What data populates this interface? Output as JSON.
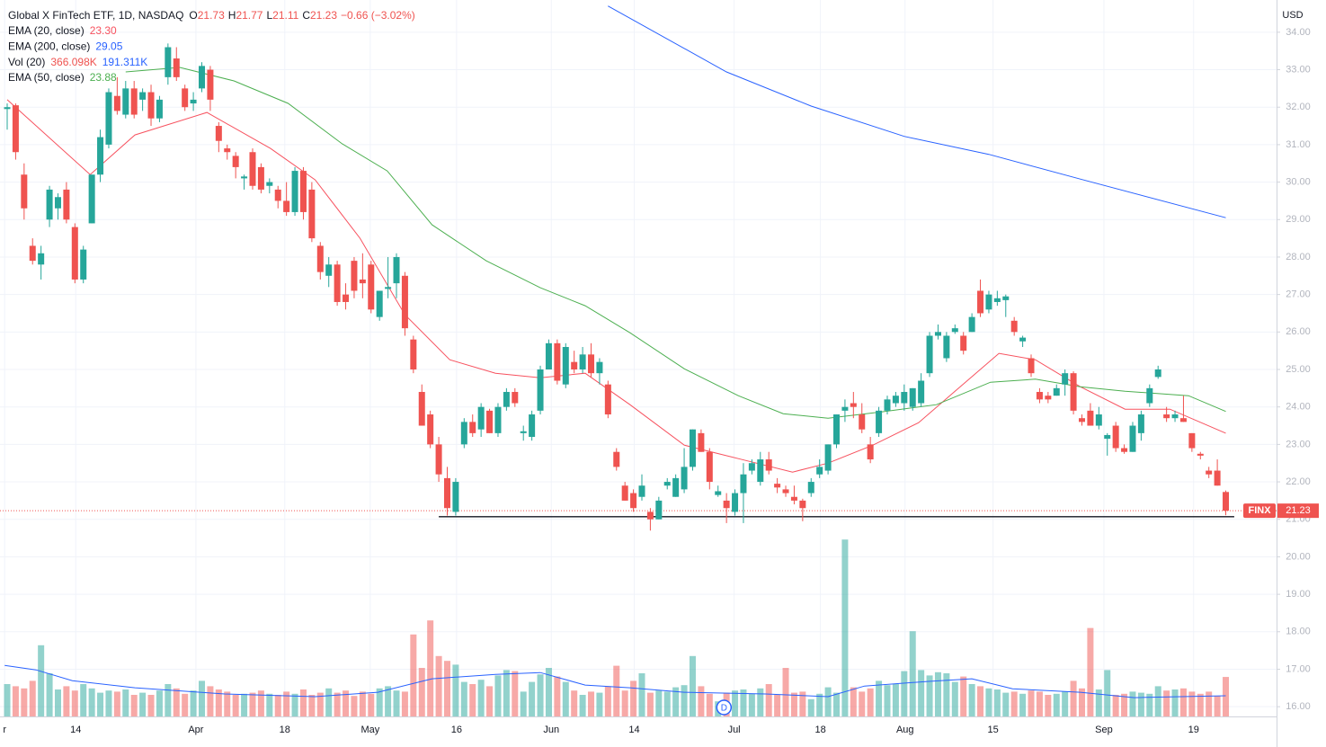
{
  "chart_data": {
    "type": "candlestick",
    "header": {
      "title": "Global X FinTech ETF, 1D, NASDAQ",
      "ohlc": [
        {
          "label": "O",
          "value": "21.73"
        },
        {
          "label": "H",
          "value": "21.77"
        },
        {
          "label": "L",
          "value": "21.11"
        },
        {
          "label": "C",
          "value": "21.23"
        }
      ],
      "change": "−0.66 (−3.02%)"
    },
    "currency": "USD",
    "symbol": "FINX",
    "dividend_marker": {
      "label": "D",
      "x": 84.7
    },
    "up_color": "#26a69a",
    "down_color": "#ef5350",
    "ylim": [
      15.74,
      34.86
    ],
    "yticks": [
      {
        "value": 16,
        "label": "16.00"
      },
      {
        "value": 17,
        "label": "17.00"
      },
      {
        "value": 18,
        "label": "18.00"
      },
      {
        "value": 19,
        "label": "19.00"
      },
      {
        "value": 20,
        "label": "20.00"
      },
      {
        "value": 21,
        "label": "21.00"
      },
      {
        "value": 22,
        "label": "22.00"
      },
      {
        "value": 23,
        "label": "23.00"
      },
      {
        "value": 24,
        "label": "24.00"
      },
      {
        "value": 25,
        "label": "25.00"
      },
      {
        "value": 26,
        "label": "26.00"
      },
      {
        "value": 27,
        "label": "27.00"
      },
      {
        "value": 28,
        "label": "28.00"
      },
      {
        "value": 29,
        "label": "29.00"
      },
      {
        "value": 30,
        "label": "30.00"
      },
      {
        "value": 31,
        "label": "31.00"
      },
      {
        "value": 32,
        "label": "32.00"
      },
      {
        "value": 33,
        "label": "33.00"
      },
      {
        "value": 34,
        "label": "34.00"
      }
    ],
    "xlim": [
      -0.85,
      150
    ],
    "xticks": [
      {
        "value": -0.3,
        "label": "r"
      },
      {
        "value": 8.1,
        "label": "14"
      },
      {
        "value": 22.3,
        "label": "Apr"
      },
      {
        "value": 32.8,
        "label": "18"
      },
      {
        "value": 42.9,
        "label": "May"
      },
      {
        "value": 53.1,
        "label": "16"
      },
      {
        "value": 64.3,
        "label": "Jun"
      },
      {
        "value": 74.1,
        "label": "14"
      },
      {
        "value": 85.9,
        "label": "Jul"
      },
      {
        "value": 96.1,
        "label": "18"
      },
      {
        "value": 106.1,
        "label": "Aug"
      },
      {
        "value": 116.5,
        "label": "15"
      },
      {
        "value": 129.6,
        "label": "Sep"
      },
      {
        "value": 140.2,
        "label": "19"
      }
    ],
    "grid": true,
    "support_line": {
      "value": 21.07,
      "from": 51,
      "to": 145
    },
    "candles": [
      [
        31.95,
        32.1,
        31.4,
        32.0
      ],
      [
        32.05,
        32.1,
        30.6,
        30.8
      ],
      [
        30.2,
        30.5,
        29.0,
        29.3
      ],
      [
        28.3,
        28.5,
        27.8,
        27.9
      ],
      [
        27.8,
        28.3,
        27.4,
        28.1
      ],
      [
        29.0,
        29.9,
        28.8,
        29.8
      ],
      [
        29.3,
        29.7,
        29.0,
        29.6
      ],
      [
        29.8,
        30.0,
        28.9,
        29.0
      ],
      [
        28.8,
        28.9,
        27.3,
        27.4
      ],
      [
        27.4,
        28.3,
        27.3,
        28.2
      ],
      [
        28.9,
        30.2,
        28.9,
        30.2
      ],
      [
        30.2,
        31.4,
        30.0,
        31.2
      ],
      [
        31.0,
        32.5,
        30.9,
        32.4
      ],
      [
        32.3,
        32.8,
        31.8,
        31.9
      ],
      [
        31.8,
        32.7,
        31.7,
        32.5
      ],
      [
        32.5,
        32.7,
        31.7,
        31.8
      ],
      [
        32.2,
        32.5,
        31.9,
        32.4
      ],
      [
        32.4,
        32.6,
        31.5,
        31.7
      ],
      [
        31.7,
        32.3,
        31.6,
        32.2
      ],
      [
        32.8,
        33.7,
        32.6,
        33.6
      ],
      [
        33.3,
        33.6,
        32.7,
        32.8
      ],
      [
        32.5,
        32.6,
        31.9,
        32.0
      ],
      [
        32.1,
        32.4,
        31.9,
        32.2
      ],
      [
        32.5,
        33.2,
        32.4,
        33.1
      ],
      [
        33.0,
        33.1,
        31.9,
        32.2
      ],
      [
        31.5,
        31.6,
        30.8,
        31.1
      ],
      [
        30.9,
        31.0,
        30.6,
        30.8
      ],
      [
        30.7,
        30.8,
        30.1,
        30.4
      ],
      [
        30.1,
        30.2,
        29.8,
        30.15
      ],
      [
        30.8,
        30.9,
        29.8,
        29.9
      ],
      [
        30.4,
        30.5,
        29.7,
        29.8
      ],
      [
        29.9,
        30.1,
        29.7,
        30.0
      ],
      [
        29.8,
        29.9,
        29.3,
        29.5
      ],
      [
        29.5,
        30.0,
        29.1,
        29.2
      ],
      [
        29.2,
        30.4,
        29.1,
        30.3
      ],
      [
        30.3,
        30.4,
        29.0,
        29.2
      ],
      [
        29.8,
        30.0,
        28.4,
        28.5
      ],
      [
        28.3,
        28.4,
        27.4,
        27.6
      ],
      [
        27.5,
        28.0,
        27.2,
        27.8
      ],
      [
        27.8,
        27.9,
        26.7,
        26.8
      ],
      [
        27.0,
        27.3,
        26.6,
        26.8
      ],
      [
        27.9,
        28.0,
        26.9,
        27.1
      ],
      [
        27.4,
        28.1,
        26.9,
        27.3
      ],
      [
        27.8,
        27.9,
        26.5,
        26.6
      ],
      [
        26.4,
        27.1,
        26.3,
        27.1
      ],
      [
        27.15,
        28.0,
        26.9,
        27.2
      ],
      [
        27.3,
        28.1,
        26.9,
        28.0
      ],
      [
        27.5,
        27.6,
        25.9,
        26.1
      ],
      [
        25.8,
        25.9,
        24.9,
        25.0
      ],
      [
        24.4,
        24.6,
        23.5,
        23.5
      ],
      [
        23.8,
        23.9,
        22.9,
        23.0
      ],
      [
        23.0,
        23.2,
        22.0,
        22.2
      ],
      [
        22.1,
        22.4,
        21.1,
        21.3
      ],
      [
        21.2,
        22.1,
        21.1,
        22.0
      ],
      [
        23.0,
        23.7,
        22.9,
        23.6
      ],
      [
        23.6,
        23.8,
        23.2,
        23.3
      ],
      [
        23.4,
        24.1,
        23.2,
        24.0
      ],
      [
        23.9,
        23.95,
        23.3,
        23.3
      ],
      [
        23.3,
        24.1,
        23.2,
        24.0
      ],
      [
        24.0,
        24.5,
        23.9,
        24.4
      ],
      [
        24.4,
        24.5,
        24.0,
        24.1
      ],
      [
        23.3,
        23.5,
        23.1,
        23.35
      ],
      [
        23.2,
        23.9,
        23.1,
        23.8
      ],
      [
        23.9,
        25.1,
        23.8,
        25.0
      ],
      [
        25.0,
        25.8,
        25.0,
        25.7
      ],
      [
        25.7,
        25.8,
        24.6,
        24.7
      ],
      [
        24.6,
        25.7,
        24.5,
        25.6
      ],
      [
        25.2,
        25.5,
        24.9,
        25.0
      ],
      [
        25.0,
        25.6,
        24.9,
        25.4
      ],
      [
        25.4,
        25.7,
        24.8,
        24.9
      ],
      [
        24.9,
        25.3,
        24.6,
        25.2
      ],
      [
        24.6,
        24.7,
        23.7,
        23.8
      ],
      [
        22.8,
        22.9,
        22.3,
        22.4
      ],
      [
        21.9,
        22.0,
        21.5,
        21.5
      ],
      [
        21.7,
        21.8,
        21.2,
        21.3
      ],
      [
        21.6,
        22.2,
        21.5,
        21.9
      ],
      [
        21.2,
        21.3,
        20.7,
        21.0
      ],
      [
        21.0,
        21.6,
        21.0,
        21.5
      ],
      [
        21.9,
        22.1,
        21.8,
        22.0
      ],
      [
        21.6,
        22.2,
        21.6,
        22.1
      ],
      [
        21.8,
        22.9,
        21.7,
        22.4
      ],
      [
        22.4,
        23.4,
        22.3,
        23.4
      ],
      [
        23.3,
        23.4,
        22.8,
        22.8
      ],
      [
        22.8,
        22.9,
        21.8,
        22.0
      ],
      [
        21.65,
        21.9,
        21.6,
        21.75
      ],
      [
        21.5,
        21.7,
        20.9,
        21.3
      ],
      [
        21.2,
        21.8,
        21.1,
        21.7
      ],
      [
        21.7,
        22.5,
        20.9,
        22.2
      ],
      [
        22.3,
        22.6,
        22.2,
        22.5
      ],
      [
        22.0,
        22.8,
        21.9,
        22.6
      ],
      [
        22.6,
        22.8,
        22.2,
        22.3
      ],
      [
        21.95,
        22.1,
        21.7,
        21.85
      ],
      [
        21.8,
        21.9,
        21.6,
        21.7
      ],
      [
        21.6,
        21.9,
        21.4,
        21.5
      ],
      [
        21.5,
        21.55,
        20.95,
        21.3
      ],
      [
        21.7,
        22.1,
        21.6,
        22.0
      ],
      [
        22.2,
        22.6,
        22.1,
        22.4
      ],
      [
        22.3,
        23.0,
        22.2,
        23.0
      ],
      [
        23.0,
        23.8,
        22.9,
        23.8
      ],
      [
        23.9,
        24.2,
        23.6,
        24.0
      ],
      [
        24.1,
        24.4,
        23.7,
        24.0
      ],
      [
        23.8,
        24.1,
        23.3,
        23.4
      ],
      [
        23.0,
        23.2,
        22.5,
        22.6
      ],
      [
        23.3,
        24.0,
        23.2,
        23.9
      ],
      [
        23.9,
        24.3,
        23.8,
        24.2
      ],
      [
        24.1,
        24.4,
        24.0,
        24.3
      ],
      [
        24.1,
        24.6,
        23.9,
        24.4
      ],
      [
        24.0,
        24.5,
        23.9,
        24.5
      ],
      [
        24.1,
        24.9,
        24.0,
        24.7
      ],
      [
        24.9,
        26.0,
        24.8,
        25.9
      ],
      [
        25.9,
        26.2,
        25.8,
        26.0
      ],
      [
        25.3,
        26.0,
        25.2,
        25.9
      ],
      [
        26.0,
        26.2,
        25.95,
        26.1
      ],
      [
        25.9,
        26.0,
        25.4,
        25.5
      ],
      [
        26.0,
        26.5,
        26.0,
        26.4
      ],
      [
        27.1,
        27.4,
        26.4,
        26.5
      ],
      [
        26.6,
        27.1,
        26.5,
        27.0
      ],
      [
        26.8,
        27.1,
        26.7,
        26.9
      ],
      [
        26.85,
        27.0,
        26.4,
        26.95
      ],
      [
        26.3,
        26.4,
        25.9,
        26.0
      ],
      [
        25.75,
        25.9,
        25.6,
        25.85
      ],
      [
        25.3,
        25.4,
        24.8,
        24.9
      ],
      [
        24.4,
        24.5,
        24.1,
        24.2
      ],
      [
        24.3,
        24.4,
        24.1,
        24.2
      ],
      [
        24.3,
        24.6,
        24.3,
        24.5
      ],
      [
        24.6,
        25.0,
        24.3,
        24.9
      ],
      [
        24.9,
        24.95,
        23.8,
        23.9
      ],
      [
        23.7,
        23.8,
        23.5,
        23.6
      ],
      [
        23.9,
        24.1,
        23.5,
        23.5
      ],
      [
        23.5,
        24.0,
        23.4,
        23.8
      ],
      [
        23.15,
        23.3,
        22.7,
        23.25
      ],
      [
        23.5,
        23.6,
        22.8,
        22.9
      ],
      [
        22.9,
        23.0,
        22.75,
        22.8
      ],
      [
        22.8,
        23.6,
        22.8,
        23.5
      ],
      [
        23.3,
        23.9,
        23.1,
        23.8
      ],
      [
        24.1,
        24.6,
        24.0,
        24.5
      ],
      [
        24.8,
        25.1,
        24.75,
        25.0
      ],
      [
        23.8,
        24.0,
        23.6,
        23.7
      ],
      [
        23.7,
        23.9,
        23.6,
        23.8
      ],
      [
        23.7,
        24.3,
        23.6,
        23.6
      ],
      [
        23.3,
        23.3,
        22.8,
        22.9
      ],
      [
        22.75,
        22.8,
        22.6,
        22.7
      ],
      [
        22.3,
        22.4,
        22.1,
        22.2
      ],
      [
        22.3,
        22.6,
        21.9,
        21.9
      ],
      [
        21.73,
        21.77,
        21.11,
        21.23
      ]
    ],
    "volume": {
      "ylim": [
        0,
        1725
      ],
      "values": [
        300,
        280,
        260,
        330,
        660,
        400,
        250,
        280,
        240,
        300,
        260,
        220,
        240,
        230,
        250,
        200,
        220,
        200,
        240,
        300,
        260,
        210,
        240,
        330,
        280,
        250,
        230,
        200,
        210,
        220,
        240,
        210,
        200,
        230,
        210,
        250,
        200,
        220,
        260,
        220,
        240,
        190,
        230,
        210,
        260,
        280,
        240,
        230,
        760,
        450,
        890,
        560,
        515,
        480,
        320,
        300,
        340,
        280,
        380,
        430,
        420,
        230,
        320,
        390,
        450,
        370,
        320,
        240,
        200,
        230,
        220,
        280,
        470,
        240,
        330,
        400,
        220,
        240,
        230,
        270,
        290,
        560,
        280,
        210,
        140,
        220,
        240,
        250,
        210,
        260,
        300,
        200,
        450,
        220,
        230,
        160,
        210,
        270,
        220,
        1640,
        270,
        230,
        260,
        330,
        290,
        300,
        420,
        790,
        430,
        380,
        410,
        400,
        320,
        370,
        300,
        280,
        260,
        250,
        220,
        230,
        210,
        240,
        230,
        200,
        210,
        230,
        330,
        260,
        820,
        250,
        430,
        200,
        210,
        230,
        220,
        210,
        280,
        240,
        250,
        260,
        230,
        210,
        230,
        190,
        366.098
      ]
    },
    "line_series": [
      {
        "name": "EMA (20, close)",
        "legend_value": "23.30",
        "color": "#f7525f",
        "pane": "price",
        "x": [
          0,
          9.8,
          15.1,
          23.6,
          31.1,
          36.4,
          41.7,
          47,
          52.3,
          57.7,
          63,
          68.3,
          73.6,
          80,
          86.4,
          92.8,
          97,
          102.3,
          107.7,
          112,
          117.2,
          121.5,
          126.8,
          132.1,
          137.4,
          144
        ],
        "values": [
          32.2,
          30.2,
          31.26,
          31.86,
          30.9,
          30.06,
          28.5,
          26.46,
          25.26,
          24.9,
          24.78,
          24.9,
          24.06,
          22.98,
          22.62,
          22.26,
          22.5,
          22.98,
          23.58,
          24.42,
          25.43,
          25.26,
          24.54,
          23.94,
          23.94,
          23.3
        ]
      },
      {
        "name": "EMA (200, close)",
        "legend_value": "29.05",
        "color": "#2962ff",
        "pane": "price",
        "x": [
          71,
          85,
          95,
          106,
          116,
          127,
          144
        ],
        "values": [
          34.7,
          32.94,
          32.03,
          31.22,
          30.74,
          30.07,
          29.05
        ]
      },
      {
        "name": "EMA (50, close)",
        "legend_value": "23.88",
        "color": "#4caf50",
        "pane": "price",
        "x": [
          14,
          20.4,
          26.8,
          33.2,
          39.6,
          44.9,
          50.2,
          56.6,
          63,
          68.3,
          73.6,
          80,
          86.4,
          91.7,
          97,
          103.4,
          109.8,
          116.2,
          121.5,
          126.8,
          132.1,
          139.6,
          144
        ],
        "values": [
          32.94,
          33.06,
          32.7,
          32.1,
          31.02,
          30.3,
          28.86,
          27.9,
          27.18,
          26.7,
          25.98,
          25.02,
          24.3,
          23.82,
          23.7,
          23.87,
          24.06,
          24.66,
          24.74,
          24.54,
          24.42,
          24.3,
          23.88
        ]
      },
      {
        "name": "Vol (20)",
        "legend_value": "366.098K",
        "legend_value2": "191.311K",
        "color": "#2962ff",
        "pane": "volume",
        "x": [
          -0.3,
          3.4,
          7.7,
          15.1,
          25.7,
          36.4,
          43.8,
          50.2,
          57.7,
          63,
          68.3,
          73.6,
          80,
          89.6,
          97,
          101.3,
          108.7,
          114,
          118.8,
          126.8,
          133.2,
          144
        ],
        "values": [
          473,
          432,
          332,
          266,
          208,
          183,
          224,
          349,
          390,
          407,
          291,
          266,
          224,
          208,
          183,
          282,
          324,
          349,
          257,
          224,
          174,
          191.311
        ]
      }
    ]
  }
}
